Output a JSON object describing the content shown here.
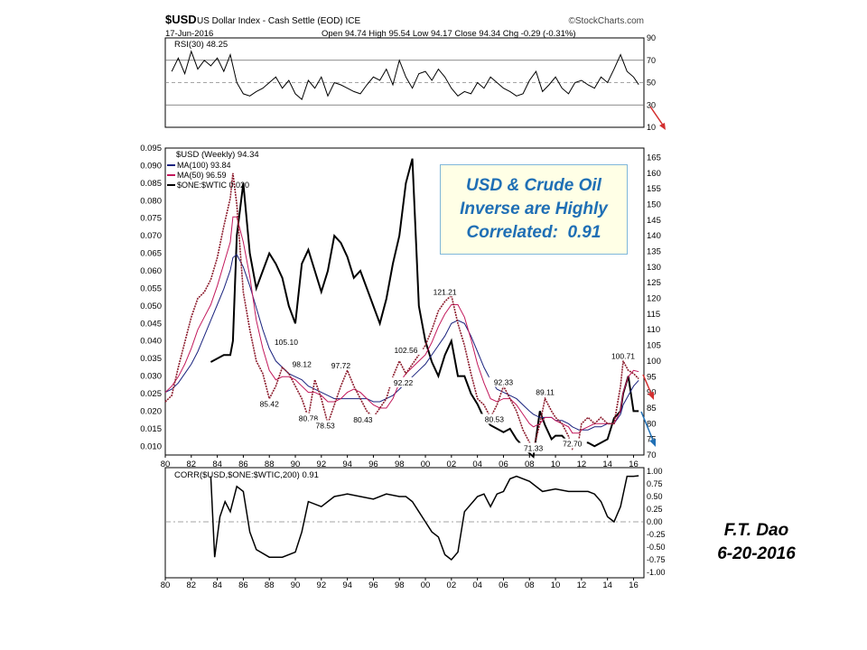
{
  "header": {
    "symbol": "$USD",
    "name": "US Dollar Index - Cash Settle (EOD) ICE",
    "watermark": "©StockCharts.com",
    "date": "17-Jun-2016",
    "quote": "Open 94.74  High 95.54  Low 94.17  Close 94.34  Chg -0.29 (-0.31%)"
  },
  "panel_labels": {
    "rsi": "RSI(30) 48.25",
    "main": "$USD (Weekly) 94.34",
    "ma100": "MA(100) 93.84",
    "ma50": "MA(50) 96.59",
    "wtic": "$ONE:$WTIC 0.020",
    "corr": "CORR($USD,$ONE:$WTIC,200) 0.91"
  },
  "annotation": {
    "lines": [
      "USD & Crude Oil",
      "Inverse are Highly",
      "Correlated:  0.91"
    ]
  },
  "author": {
    "name": "F.T. Dao",
    "date": "6-20-2016"
  },
  "colors": {
    "usd": "#8b1a2b",
    "ma100": "#1a237e",
    "ma50": "#c2185b",
    "wtic": "#000000",
    "arrow_red": "#d32f2f",
    "arrow_blue": "#1f6fb5",
    "annotation_text": "#1f6fb5",
    "annotation_border": "#7fb7d9",
    "annotation_bg": "#ffffe6",
    "rsi_fill": "#5f7f5f"
  },
  "chart_data": [
    {
      "type": "line",
      "panel": "RSI",
      "series": [
        {
          "name": "RSI(30)",
          "x": [
            1980.5,
            1981,
            1981.5,
            1982,
            1982.5,
            1983,
            1983.5,
            1984,
            1984.5,
            1985,
            1985.5,
            1986,
            1986.5,
            1987,
            1987.5,
            1988,
            1988.5,
            1989,
            1989.5,
            1990,
            1990.5,
            1991,
            1991.5,
            1992,
            1992.5,
            1993,
            1993.5,
            1994,
            1994.5,
            1995,
            1995.5,
            1996,
            1996.5,
            1997,
            1997.5,
            1998,
            1998.5,
            1999,
            1999.5,
            2000,
            2000.5,
            2001,
            2001.5,
            2002,
            2002.5,
            2003,
            2003.5,
            2004,
            2004.5,
            2005,
            2005.5,
            2006,
            2006.5,
            2007,
            2007.5,
            2008,
            2008.5,
            2009,
            2009.5,
            2010,
            2010.5,
            2011,
            2011.5,
            2012,
            2012.5,
            2013,
            2013.5,
            2014,
            2014.5,
            2015,
            2015.5,
            2016,
            2016.4
          ],
          "values": [
            60,
            72,
            58,
            78,
            62,
            70,
            65,
            72,
            60,
            75,
            50,
            40,
            38,
            42,
            45,
            50,
            55,
            45,
            52,
            40,
            35,
            52,
            45,
            55,
            38,
            50,
            48,
            45,
            42,
            40,
            48,
            55,
            52,
            62,
            48,
            70,
            55,
            45,
            58,
            60,
            52,
            62,
            55,
            45,
            38,
            42,
            40,
            50,
            45,
            55,
            50,
            45,
            42,
            38,
            40,
            52,
            60,
            42,
            48,
            55,
            45,
            40,
            50,
            52,
            48,
            45,
            55,
            50,
            62,
            75,
            60,
            55,
            48.25
          ]
        }
      ],
      "ylim": [
        10,
        90
      ],
      "yticks": [
        10,
        30,
        50,
        70,
        90
      ]
    },
    {
      "type": "line",
      "panel": "Price",
      "x": [
        1980,
        1980.5,
        1981,
        1981.5,
        1982,
        1982.5,
        1983,
        1983.5,
        1984,
        1984.5,
        1985,
        1985.2,
        1985.5,
        1986,
        1986.5,
        1987,
        1987.5,
        1988,
        1988.5,
        1989,
        1989.5,
        1990,
        1990.5,
        1991,
        1991.5,
        1992,
        1992.5,
        1993,
        1993.5,
        1994,
        1994.5,
        1995,
        1995.5,
        1996,
        1996.5,
        1997,
        1997.5,
        1998,
        1998.5,
        1999,
        1999.5,
        2000,
        2000.5,
        2001,
        2001.5,
        2002,
        2002.5,
        2003,
        2003.5,
        2004,
        2004.5,
        2005,
        2005.5,
        2006,
        2006.5,
        2007,
        2007.5,
        2008,
        2008.3,
        2008.8,
        2009.2,
        2009.7,
        2010,
        2010.5,
        2011,
        2011.3,
        2011.8,
        2012,
        2012.5,
        2013,
        2013.5,
        2014,
        2014.5,
        2015,
        2015.2,
        2015.6,
        2016,
        2016.4
      ],
      "series": [
        {
          "name": "$USD (Weekly)",
          "values": [
            87,
            89,
            98,
            106,
            114,
            120,
            122,
            126,
            133,
            143,
            152,
            160,
            150,
            122,
            110,
            100,
            96,
            88,
            92,
            98,
            96,
            92,
            88,
            82,
            94,
            88,
            80,
            86,
            92,
            97,
            92,
            88,
            84,
            82,
            85,
            88,
            95,
            100,
            96,
            99,
            102,
            105,
            110,
            116,
            119,
            121,
            112,
            105,
            96,
            88,
            86,
            82,
            86,
            92,
            88,
            84,
            78,
            74,
            72,
            80,
            88,
            84,
            82,
            80,
            76,
            72,
            75,
            80,
            82,
            80,
            82,
            80,
            80,
            92,
            100,
            97,
            96,
            94.34
          ]
        },
        {
          "name": "MA(100)",
          "values": [
            90,
            91,
            93,
            96,
            99,
            103,
            108,
            113,
            118,
            123,
            129,
            133,
            134,
            130,
            124,
            117,
            110,
            104,
            100,
            98,
            96,
            95,
            94,
            92,
            91,
            90,
            89,
            88,
            88,
            88,
            88,
            88,
            88,
            87,
            87,
            88,
            89,
            91,
            93,
            95,
            97,
            99,
            102,
            105,
            108,
            112,
            113,
            112,
            108,
            103,
            98,
            94,
            91,
            90,
            89,
            88,
            86,
            84,
            83,
            82,
            82,
            82,
            81,
            81,
            80,
            79,
            78,
            78,
            78,
            79,
            79,
            80,
            80,
            83,
            86,
            89,
            92,
            93.84
          ]
        },
        {
          "name": "MA(50)",
          "values": [
            90,
            92,
            95,
            99,
            104,
            110,
            114,
            118,
            124,
            131,
            138,
            146,
            146,
            138,
            127,
            113,
            104,
            97,
            94,
            95,
            95,
            94,
            92,
            90,
            90,
            89,
            87,
            87,
            88,
            90,
            91,
            90,
            88,
            86,
            85,
            85,
            88,
            93,
            96,
            98,
            100,
            102,
            106,
            111,
            115,
            118,
            118,
            114,
            107,
            99,
            93,
            88,
            87,
            88,
            88,
            86,
            83,
            80,
            79,
            80,
            82,
            82,
            81,
            80,
            79,
            77,
            77,
            78,
            79,
            80,
            80,
            80,
            80,
            84,
            90,
            95,
            97,
            96.59
          ]
        },
        {
          "name": "$ONE:$WTIC",
          "values": [
            null,
            null,
            null,
            null,
            null,
            null,
            null,
            0.034,
            0.035,
            0.036,
            0.036,
            0.04,
            0.07,
            0.085,
            0.065,
            0.055,
            0.06,
            0.065,
            0.062,
            0.058,
            0.05,
            0.045,
            0.062,
            0.066,
            0.06,
            0.054,
            0.06,
            0.07,
            0.068,
            0.064,
            0.058,
            0.06,
            0.055,
            0.05,
            0.045,
            0.052,
            0.062,
            0.07,
            0.085,
            0.092,
            0.05,
            0.04,
            0.034,
            0.03,
            0.036,
            0.04,
            0.03,
            0.03,
            0.025,
            0.022,
            0.018,
            0.016,
            0.015,
            0.014,
            0.015,
            0.012,
            0.01,
            0.008,
            0.007,
            0.02,
            0.016,
            0.012,
            0.013,
            0.013,
            0.011,
            0.01,
            0.011,
            0.011,
            0.011,
            0.01,
            0.011,
            0.012,
            0.018,
            0.02,
            0.025,
            0.03,
            0.02,
            0.02
          ]
        }
      ],
      "ylim_left": [
        0.0075,
        0.095
      ],
      "yticks_left": [
        0.01,
        0.015,
        0.02,
        0.025,
        0.03,
        0.035,
        0.04,
        0.045,
        0.05,
        0.055,
        0.06,
        0.065,
        0.07,
        0.075,
        0.08,
        0.085,
        0.09,
        0.095
      ],
      "ylim_right": [
        70,
        168
      ],
      "yticks_right": [
        70,
        75,
        80,
        85,
        90,
        95,
        100,
        105,
        110,
        115,
        120,
        125,
        130,
        135,
        140,
        145,
        150,
        155,
        160,
        165
      ],
      "xlim": [
        1980,
        2016.8
      ],
      "xticks": [
        "80",
        "82",
        "84",
        "86",
        "88",
        "90",
        "92",
        "94",
        "96",
        "98",
        "00",
        "02",
        "04",
        "06",
        "08",
        "10",
        "12",
        "14",
        "16"
      ],
      "value_labels": [
        {
          "x": 1988,
          "y": 85.42,
          "text": "85.42"
        },
        {
          "x": 1989.3,
          "y": 105.1,
          "text": "105.10"
        },
        {
          "x": 1990.5,
          "y": 98.12,
          "text": "98.12"
        },
        {
          "x": 1991,
          "y": 80.78,
          "text": "80.78"
        },
        {
          "x": 1992.3,
          "y": 78.53,
          "text": "78.53"
        },
        {
          "x": 1993.5,
          "y": 97.72,
          "text": "97.72"
        },
        {
          "x": 1995.2,
          "y": 80.43,
          "text": "80.43"
        },
        {
          "x": 1998.5,
          "y": 102.56,
          "text": "102.56"
        },
        {
          "x": 1998.3,
          "y": 92.22,
          "text": "92.22"
        },
        {
          "x": 2001.5,
          "y": 121.21,
          "text": "121.21"
        },
        {
          "x": 2006,
          "y": 92.33,
          "text": "92.33"
        },
        {
          "x": 2005.3,
          "y": 80.53,
          "text": "80.53"
        },
        {
          "x": 2008.3,
          "y": 71.33,
          "text": "71.33"
        },
        {
          "x": 2009.2,
          "y": 89.11,
          "text": "89.11"
        },
        {
          "x": 2011.3,
          "y": 72.7,
          "text": "72.70"
        },
        {
          "x": 2015.2,
          "y": 100.71,
          "text": "100.71"
        }
      ]
    },
    {
      "type": "line",
      "panel": "Correlation",
      "series": [
        {
          "name": "CORR($USD,$ONE:$WTIC,200)",
          "x": [
            1983.5,
            1983.8,
            1984.2,
            1984.6,
            1985,
            1985.5,
            1986,
            1986.5,
            1987,
            1988,
            1989,
            1990,
            1990.5,
            1991,
            1992,
            1993,
            1994,
            1995,
            1996,
            1997,
            1998,
            1998.5,
            1999,
            1999.5,
            2000,
            2000.5,
            2001,
            2001.5,
            2002,
            2002.5,
            2003,
            2004,
            2004.5,
            2005,
            2005.5,
            2006,
            2006.5,
            2007,
            2008,
            2009,
            2010,
            2011,
            2012,
            2012.5,
            2013,
            2013.5,
            2014,
            2014.5,
            2015,
            2015.5,
            2016,
            2016.4
          ],
          "values": [
            0.9,
            -0.7,
            0.1,
            0.4,
            0.2,
            0.7,
            0.6,
            -0.2,
            -0.55,
            -0.7,
            -0.7,
            -0.6,
            -0.2,
            0.4,
            0.3,
            0.5,
            0.55,
            0.5,
            0.45,
            0.55,
            0.5,
            0.5,
            0.4,
            0.2,
            0.0,
            -0.2,
            -0.3,
            -0.65,
            -0.75,
            -0.6,
            0.2,
            0.5,
            0.55,
            0.3,
            0.55,
            0.6,
            0.85,
            0.9,
            0.8,
            0.6,
            0.65,
            0.6,
            0.6,
            0.6,
            0.55,
            0.4,
            0.1,
            0.0,
            0.3,
            0.9,
            0.9,
            0.91
          ]
        }
      ],
      "ylim": [
        -1.0,
        1.0
      ],
      "yticks": [
        -1.0,
        -0.75,
        -0.5,
        -0.25,
        0.0,
        0.25,
        0.5,
        0.75,
        1.0
      ],
      "ytick_labels": [
        "-1.00",
        "-0.75",
        "-0.50",
        "-0.25",
        "0.00",
        "0.25",
        "0.50",
        "0.75",
        "1.00"
      ]
    }
  ]
}
